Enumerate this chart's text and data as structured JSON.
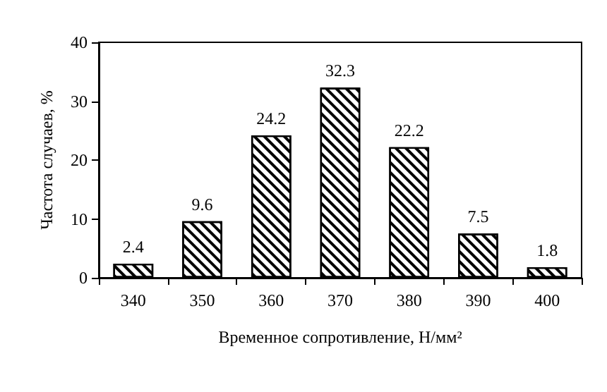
{
  "chart_data": {
    "type": "bar",
    "xlabel": "Временное сопротивление, Н/мм²",
    "ylabel": "Частота случаев, %",
    "categories": [
      "340",
      "350",
      "360",
      "370",
      "380",
      "390",
      "400"
    ],
    "values": [
      2.4,
      9.6,
      24.2,
      32.3,
      22.2,
      7.5,
      1.8
    ],
    "color": "#000000",
    "ylim": [
      0,
      40
    ],
    "yticks": [
      0,
      10,
      20,
      30,
      40
    ],
    "grid": false,
    "data_labels": true
  }
}
